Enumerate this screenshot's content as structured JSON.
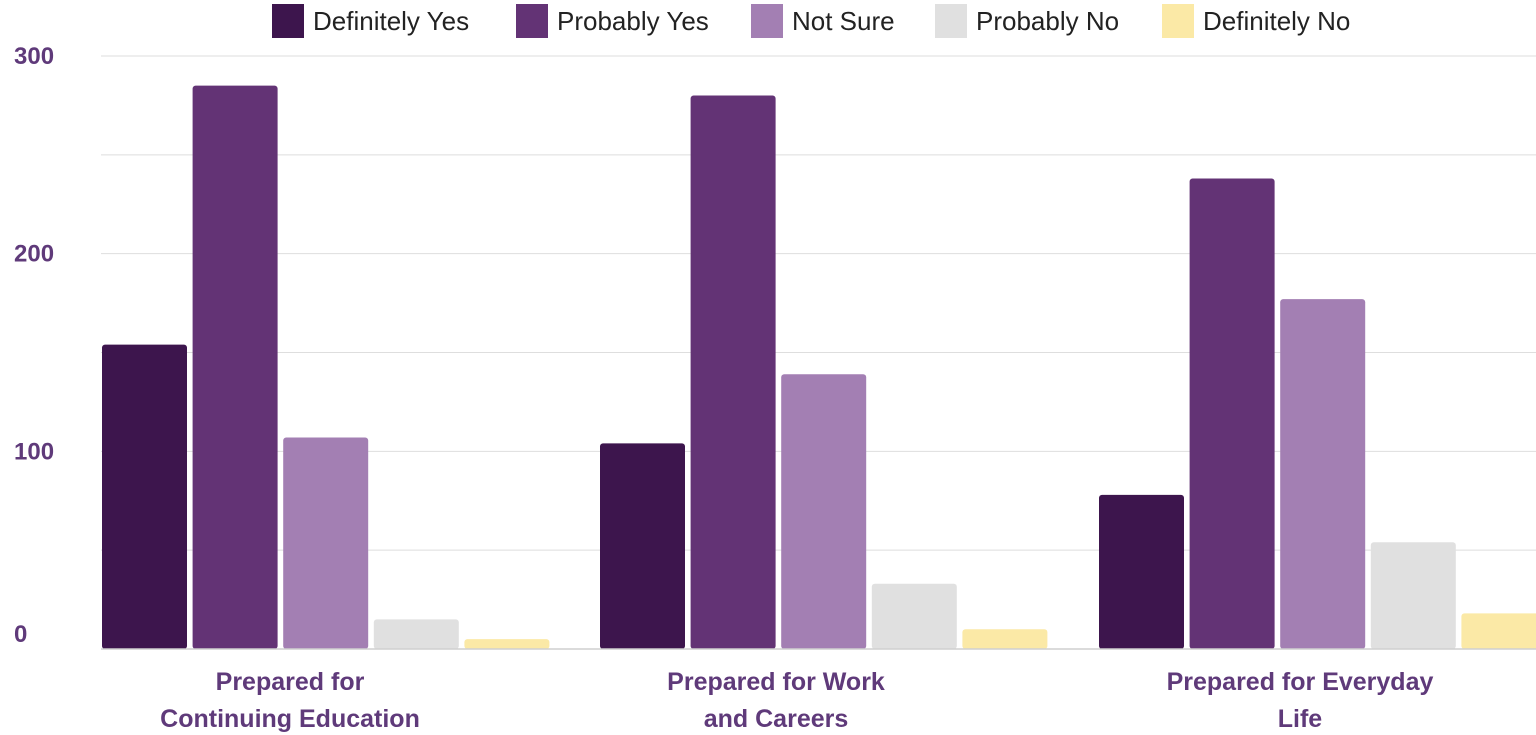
{
  "chart_data": {
    "type": "bar",
    "title": "",
    "xlabel": "",
    "ylabel": "",
    "categories": [
      [
        "Prepared for",
        "Continuing Education"
      ],
      [
        "Prepared for Work",
        "and Careers"
      ],
      [
        "Prepared for Everyday",
        "Life"
      ]
    ],
    "series": [
      {
        "name": "Definitely Yes",
        "color": "#3d154d",
        "values": [
          154,
          104,
          78
        ]
      },
      {
        "name": "Probably Yes",
        "color": "#633375",
        "values": [
          285,
          280,
          238
        ]
      },
      {
        "name": "Not Sure",
        "color": "#a37fb3",
        "values": [
          107,
          139,
          177
        ]
      },
      {
        "name": "Probably No",
        "color": "#e0e0e0",
        "values": [
          15,
          33,
          54
        ]
      },
      {
        "name": "Definitely No",
        "color": "#fbe9a6",
        "values": [
          5,
          10,
          18
        ]
      }
    ],
    "ylim": [
      0,
      300
    ],
    "yticks": [
      0,
      100,
      200,
      300
    ],
    "grid": true,
    "gridlines": [
      0,
      50,
      100,
      150,
      200,
      250,
      300
    ],
    "legend": "top"
  }
}
